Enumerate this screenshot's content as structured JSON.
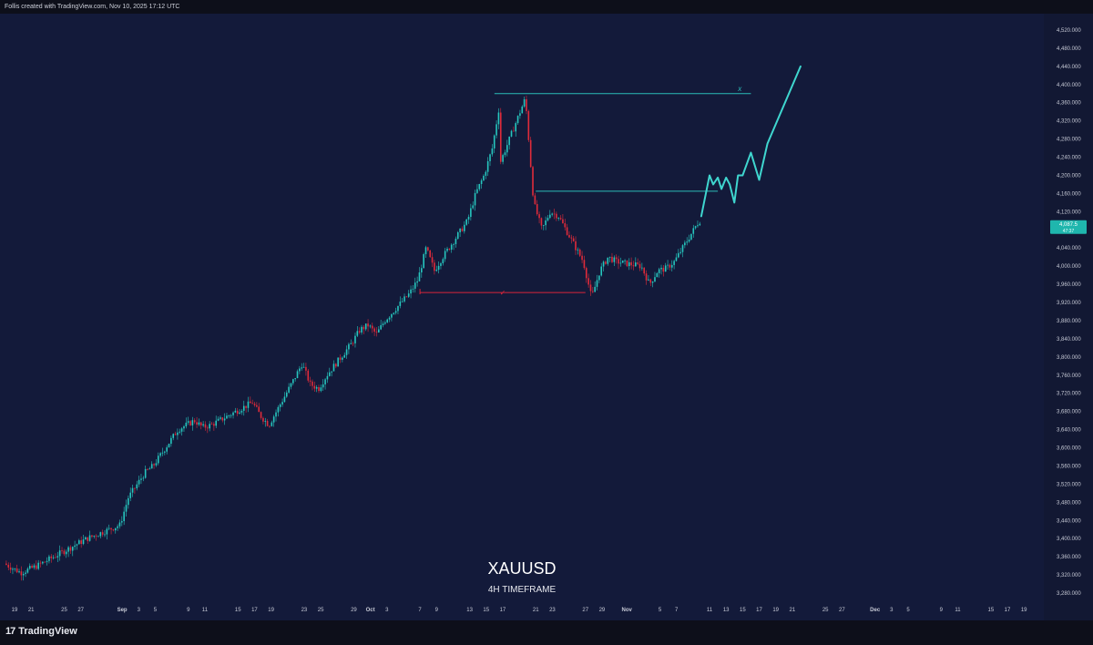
{
  "header": {
    "text": "Follis created with TradingView.com, Nov 10, 2025 17:12 UTC"
  },
  "footer": {
    "brand": "TradingView"
  },
  "chart_data": {
    "type": "candlestick",
    "symbol": "XAUUSD",
    "timeframe": "4H TIMEFRAME",
    "title": "XAUUSD",
    "subtitle": "4H TIMEFRAME",
    "ylim": [
      3250,
      4560
    ],
    "y_ticks": [
      3280,
      3320,
      3360,
      3400,
      3440,
      3480,
      3520,
      3560,
      3600,
      3640,
      3680,
      3720,
      3760,
      3800,
      3840,
      3880,
      3920,
      3960,
      4000,
      4040,
      4080,
      4120,
      4160,
      4200,
      4240,
      4280,
      4320,
      4360,
      4400,
      4440,
      4480,
      4520
    ],
    "y_tick_labels": [
      "3,280.000",
      "3,320.000",
      "3,360.000",
      "3,400.000",
      "3,440.000",
      "3,480.000",
      "3,520.000",
      "3,560.000",
      "3,600.000",
      "3,640.000",
      "3,680.000",
      "3,720.000",
      "3,760.000",
      "3,800.000",
      "3,840.000",
      "3,880.000",
      "3,920.000",
      "3,960.000",
      "4,000.000",
      "4,040.000",
      "4,080.000",
      "4,120.000",
      "4,160.000",
      "4,200.000",
      "4,240.000",
      "4,280.000",
      "4,320.000",
      "4,360.000",
      "4,400.000",
      "4,440.000",
      "4,480.000",
      "4,520.000"
    ],
    "x_ticks": [
      {
        "label": "19",
        "date": "2025-08-19",
        "bold": false
      },
      {
        "label": "21",
        "date": "2025-08-21",
        "bold": false
      },
      {
        "label": "25",
        "date": "2025-08-25",
        "bold": false
      },
      {
        "label": "27",
        "date": "2025-08-27",
        "bold": false
      },
      {
        "label": "Sep",
        "date": "2025-09-01",
        "bold": true
      },
      {
        "label": "3",
        "date": "2025-09-03",
        "bold": false
      },
      {
        "label": "5",
        "date": "2025-09-05",
        "bold": false
      },
      {
        "label": "9",
        "date": "2025-09-09",
        "bold": false
      },
      {
        "label": "11",
        "date": "2025-09-11",
        "bold": false
      },
      {
        "label": "15",
        "date": "2025-09-15",
        "bold": false
      },
      {
        "label": "17",
        "date": "2025-09-17",
        "bold": false
      },
      {
        "label": "19",
        "date": "2025-09-19",
        "bold": false
      },
      {
        "label": "23",
        "date": "2025-09-23",
        "bold": false
      },
      {
        "label": "25",
        "date": "2025-09-25",
        "bold": false
      },
      {
        "label": "29",
        "date": "2025-09-29",
        "bold": false
      },
      {
        "label": "Oct",
        "date": "2025-10-01",
        "bold": true
      },
      {
        "label": "3",
        "date": "2025-10-03",
        "bold": false
      },
      {
        "label": "7",
        "date": "2025-10-07",
        "bold": false
      },
      {
        "label": "9",
        "date": "2025-10-09",
        "bold": false
      },
      {
        "label": "13",
        "date": "2025-10-13",
        "bold": false
      },
      {
        "label": "15",
        "date": "2025-10-15",
        "bold": false
      },
      {
        "label": "17",
        "date": "2025-10-17",
        "bold": false
      },
      {
        "label": "21",
        "date": "2025-10-21",
        "bold": false
      },
      {
        "label": "23",
        "date": "2025-10-23",
        "bold": false
      },
      {
        "label": "27",
        "date": "2025-10-27",
        "bold": false
      },
      {
        "label": "29",
        "date": "2025-10-29",
        "bold": false
      },
      {
        "label": "Nov",
        "date": "2025-11-01",
        "bold": true
      },
      {
        "label": "5",
        "date": "2025-11-05",
        "bold": false
      },
      {
        "label": "7",
        "date": "2025-11-07",
        "bold": false
      },
      {
        "label": "11",
        "date": "2025-11-11",
        "bold": false
      },
      {
        "label": "13",
        "date": "2025-11-13",
        "bold": false
      },
      {
        "label": "15",
        "date": "2025-11-15",
        "bold": false
      },
      {
        "label": "17",
        "date": "2025-11-17",
        "bold": false
      },
      {
        "label": "19",
        "date": "2025-11-19",
        "bold": false
      },
      {
        "label": "21",
        "date": "2025-11-21",
        "bold": false
      },
      {
        "label": "25",
        "date": "2025-11-25",
        "bold": false
      },
      {
        "label": "27",
        "date": "2025-11-27",
        "bold": false
      },
      {
        "label": "Dec",
        "date": "2025-12-01",
        "bold": true
      },
      {
        "label": "3",
        "date": "2025-12-03",
        "bold": false
      },
      {
        "label": "5",
        "date": "2025-12-05",
        "bold": false
      },
      {
        "label": "9",
        "date": "2025-12-09",
        "bold": false
      },
      {
        "label": "11",
        "date": "2025-12-11",
        "bold": false
      },
      {
        "label": "15",
        "date": "2025-12-15",
        "bold": false
      },
      {
        "label": "17",
        "date": "2025-12-17",
        "bold": false
      },
      {
        "label": "19",
        "date": "2025-12-19",
        "bold": false
      }
    ],
    "price_path": [
      [
        "2025-08-18",
        3345
      ],
      [
        "2025-08-20",
        3325
      ],
      [
        "2025-08-22",
        3340
      ],
      [
        "2025-08-26",
        3380
      ],
      [
        "2025-08-28",
        3400
      ],
      [
        "2025-09-01",
        3430
      ],
      [
        "2025-09-02",
        3490
      ],
      [
        "2025-09-04",
        3545
      ],
      [
        "2025-09-05",
        3560
      ],
      [
        "2025-09-08",
        3640
      ],
      [
        "2025-09-10",
        3660
      ],
      [
        "2025-09-11",
        3645
      ],
      [
        "2025-09-12",
        3650
      ],
      [
        "2025-09-16",
        3690
      ],
      [
        "2025-09-17",
        3700
      ],
      [
        "2025-09-18",
        3670
      ],
      [
        "2025-09-19",
        3650
      ],
      [
        "2025-09-22",
        3750
      ],
      [
        "2025-09-23",
        3785
      ],
      [
        "2025-09-24",
        3740
      ],
      [
        "2025-09-25",
        3730
      ],
      [
        "2025-09-26",
        3760
      ],
      [
        "2025-09-29",
        3830
      ],
      [
        "2025-09-30",
        3860
      ],
      [
        "2025-10-01",
        3870
      ],
      [
        "2025-10-02",
        3850
      ],
      [
        "2025-10-03",
        3880
      ],
      [
        "2025-10-06",
        3940
      ],
      [
        "2025-10-07",
        3970
      ],
      [
        "2025-10-08",
        4040
      ],
      [
        "2025-10-09",
        3990
      ],
      [
        "2025-10-10",
        4020
      ],
      [
        "2025-10-13",
        4100
      ],
      [
        "2025-10-14",
        4160
      ],
      [
        "2025-10-15",
        4200
      ],
      [
        "2025-10-16",
        4260
      ],
      [
        "2025-10-17",
        4370
      ],
      [
        "2025-10-17",
        4230
      ],
      [
        "2025-10-20",
        4370
      ],
      [
        "2025-10-21",
        4140
      ],
      [
        "2025-10-22",
        4080
      ],
      [
        "2025-10-23",
        4120
      ],
      [
        "2025-10-24",
        4110
      ],
      [
        "2025-10-27",
        4010
      ],
      [
        "2025-10-28",
        3930
      ],
      [
        "2025-10-29",
        3990
      ],
      [
        "2025-10-30",
        4020
      ],
      [
        "2025-10-31",
        4010
      ],
      [
        "2025-11-03",
        4000
      ],
      [
        "2025-11-04",
        3960
      ],
      [
        "2025-11-05",
        3990
      ],
      [
        "2025-11-06",
        3995
      ],
      [
        "2025-11-07",
        4010
      ],
      [
        "2025-11-10",
        4100
      ]
    ],
    "last_price": "4,087.5",
    "last_price_sub": "47:37",
    "annotations": {
      "resistance_high": {
        "price": 4380,
        "from": "2025-10-16",
        "to": "2025-11-16",
        "label": "x"
      },
      "resistance_mid": {
        "price": 4165,
        "from": "2025-10-21",
        "to": "2025-11-12"
      },
      "support_low": {
        "price": 3942,
        "from": "2025-10-07",
        "to": "2025-10-27",
        "label": "✓"
      },
      "projection": [
        [
          "2025-11-10",
          4110
        ],
        [
          "2025-11-11",
          4200
        ],
        [
          "2025-11-11",
          4180
        ],
        [
          "2025-11-12",
          4195
        ],
        [
          "2025-11-12",
          4170
        ],
        [
          "2025-11-13",
          4195
        ],
        [
          "2025-11-13",
          4180
        ],
        [
          "2025-11-14",
          4140
        ],
        [
          "2025-11-14",
          4200
        ],
        [
          "2025-11-15",
          4200
        ],
        [
          "2025-11-16",
          4250
        ],
        [
          "2025-11-17",
          4190
        ],
        [
          "2025-11-18",
          4270
        ],
        [
          "2025-11-22",
          4440
        ]
      ]
    },
    "colors": {
      "background": "#131a3a",
      "up": "#26c6be",
      "down": "#e02b3a",
      "resistance": "#2bbcb8",
      "support": "#d8253a",
      "projection": "#3fd6cf",
      "price_tag": "#1fb6ad"
    },
    "grid": false,
    "legend": "none"
  }
}
